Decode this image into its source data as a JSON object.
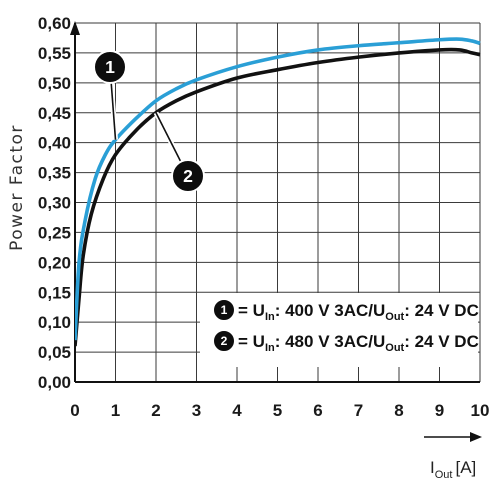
{
  "chart_data": {
    "type": "line",
    "title": "",
    "ylabel": "Power Factor",
    "xlabel": "I",
    "xlabel_sub": "Out",
    "xlabel_unit": "[A]",
    "xlim": [
      0,
      10
    ],
    "ylim": [
      0.0,
      0.6
    ],
    "grid": true,
    "x_ticks": [
      "0",
      "1",
      "2",
      "3",
      "4",
      "5",
      "6",
      "7",
      "8",
      "9",
      "10"
    ],
    "y_ticks": [
      "0,00",
      "0,05",
      "0,10",
      "0,15",
      "0,20",
      "0,25",
      "0,30",
      "0,35",
      "0,40",
      "0,45",
      "0,50",
      "0,55",
      "0,60"
    ],
    "series": [
      {
        "marker": "1",
        "color": "#2a9fd6",
        "points": [
          [
            0,
            0.07
          ],
          [
            0.1,
            0.2
          ],
          [
            0.25,
            0.27
          ],
          [
            0.5,
            0.34
          ],
          [
            0.75,
            0.38
          ],
          [
            1,
            0.405
          ],
          [
            1.5,
            0.44
          ],
          [
            2,
            0.47
          ],
          [
            2.5,
            0.49
          ],
          [
            3,
            0.505
          ],
          [
            4,
            0.527
          ],
          [
            5,
            0.543
          ],
          [
            6,
            0.555
          ],
          [
            7,
            0.562
          ],
          [
            8,
            0.567
          ],
          [
            9,
            0.572
          ],
          [
            9.5,
            0.573
          ],
          [
            9.8,
            0.57
          ],
          [
            10,
            0.566
          ]
        ]
      },
      {
        "marker": "2",
        "color": "#111111",
        "points": [
          [
            0,
            0.06
          ],
          [
            0.1,
            0.14
          ],
          [
            0.2,
            0.21
          ],
          [
            0.4,
            0.28
          ],
          [
            0.7,
            0.34
          ],
          [
            1,
            0.38
          ],
          [
            1.5,
            0.42
          ],
          [
            2,
            0.45
          ],
          [
            2.5,
            0.47
          ],
          [
            3,
            0.485
          ],
          [
            4,
            0.508
          ],
          [
            5,
            0.522
          ],
          [
            6,
            0.534
          ],
          [
            7,
            0.543
          ],
          [
            8,
            0.55
          ],
          [
            9,
            0.555
          ],
          [
            9.5,
            0.555
          ],
          [
            9.8,
            0.55
          ],
          [
            10,
            0.547
          ]
        ]
      }
    ],
    "legend": {
      "placement": "bottom-right",
      "entries": [
        {
          "marker": "1",
          "eq": "= U",
          "sub1": "In",
          "mid": ": 400 V 3AC/U",
          "sub2": "Out",
          "end": ": 24 V DC"
        },
        {
          "marker": "2",
          "eq": "= U",
          "sub1": "In",
          "mid": ": 480 V 3AC/U",
          "sub2": "Out",
          "end": ": 24 V DC"
        }
      ]
    },
    "annotations": [
      {
        "marker": "1",
        "at_x": 1.0
      },
      {
        "marker": "2",
        "at_x": 2.0
      }
    ]
  }
}
